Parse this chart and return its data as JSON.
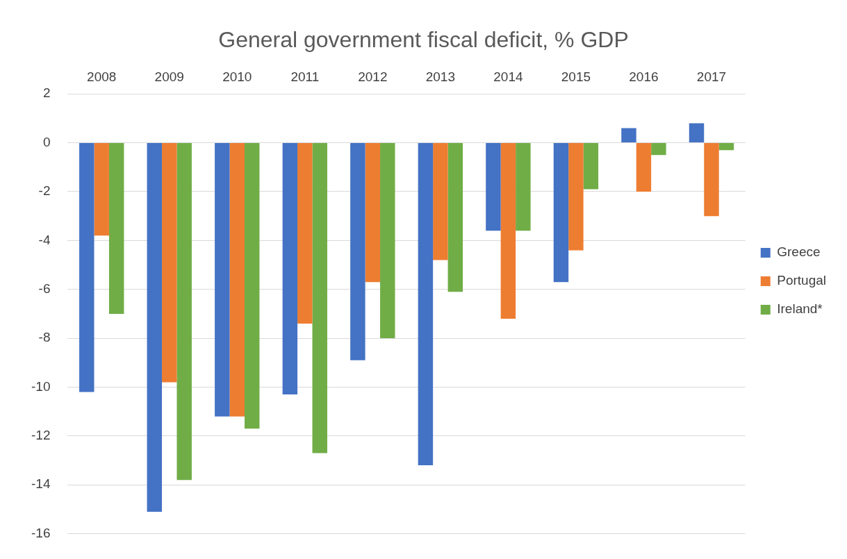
{
  "chart_data": {
    "type": "bar",
    "title": "General government fiscal deficit, % GDP",
    "categories": [
      "2008",
      "2009",
      "2010",
      "2011",
      "2012",
      "2013",
      "2014",
      "2015",
      "2016",
      "2017"
    ],
    "series": [
      {
        "name": "Greece",
        "color": "#4472c4",
        "values": [
          -10.2,
          -15.1,
          -11.2,
          -10.3,
          -8.9,
          -13.2,
          -3.6,
          -5.7,
          0.6,
          0.8
        ]
      },
      {
        "name": "Portugal",
        "color": "#ed7d31",
        "values": [
          -3.8,
          -9.8,
          -11.2,
          -7.4,
          -5.7,
          -4.8,
          -7.2,
          -4.4,
          -2.0,
          -3.0
        ]
      },
      {
        "name": "Ireland*",
        "color": "#70ad47",
        "values": [
          -7.0,
          -13.8,
          -11.7,
          -12.7,
          -8.0,
          -6.1,
          -3.6,
          -1.9,
          -0.5,
          -0.3
        ]
      }
    ],
    "ylim": [
      -16,
      2
    ],
    "yticks": [
      -16,
      -14,
      -12,
      -10,
      -8,
      -6,
      -4,
      -2,
      0,
      2
    ],
    "grid": "y",
    "legend": "right"
  }
}
